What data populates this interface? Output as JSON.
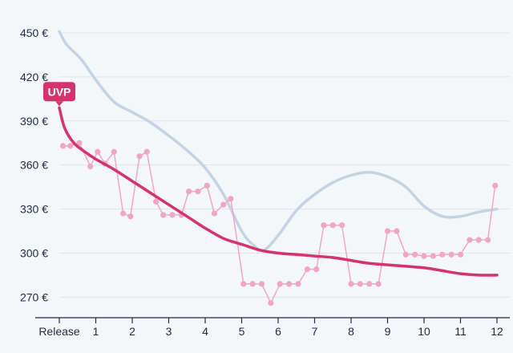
{
  "chart_data": {
    "type": "line",
    "x_tick_labels": [
      "Release",
      "1",
      "2",
      "3",
      "4",
      "5",
      "6",
      "7",
      "8",
      "9",
      "10",
      "11",
      "12"
    ],
    "y_tick_labels": [
      "270 €",
      "300 €",
      "330 €",
      "360 €",
      "390 €",
      "420 €",
      "450 €"
    ],
    "y_ticks": [
      270,
      300,
      330,
      360,
      390,
      420,
      450
    ],
    "xlim": [
      0,
      12
    ],
    "ylim": [
      256,
      456
    ],
    "grid": true,
    "annotation": {
      "text": "UVP",
      "x": 0,
      "y": 399
    },
    "colors": {
      "price": "#d6336c",
      "points": "#f0a5c5",
      "trend": "#c4d3e3"
    },
    "series": [
      {
        "role": "daily-prices",
        "x": [
          0.1,
          0.3,
          0.55,
          0.85,
          1.05,
          1.25,
          1.5,
          1.75,
          1.95,
          2.2,
          2.4,
          2.65,
          2.85,
          3.1,
          3.35,
          3.55,
          3.8,
          4.05,
          4.25,
          4.5,
          4.7,
          5.05,
          5.3,
          5.55,
          5.8,
          6.05,
          6.3,
          6.55,
          6.8,
          7.05,
          7.25,
          7.5,
          7.75,
          8.0,
          8.25,
          8.5,
          8.75,
          9.0,
          9.25,
          9.5,
          9.75,
          10.0,
          10.25,
          10.5,
          10.75,
          11.0,
          11.25,
          11.5,
          11.75,
          11.95
        ],
        "y": [
          373,
          373,
          375,
          359,
          369,
          361,
          369,
          327,
          325,
          366,
          369,
          335,
          326,
          326,
          326,
          342,
          342,
          346,
          327,
          333,
          337,
          279,
          279,
          279,
          266,
          279,
          279,
          279,
          289,
          289,
          319,
          319,
          319,
          279,
          279,
          279,
          279,
          315,
          315,
          299,
          299,
          298,
          298,
          299,
          299,
          299,
          309,
          309,
          309,
          346
        ]
      },
      {
        "role": "average-price",
        "x": [
          0,
          0.15,
          0.4,
          0.7,
          1.0,
          1.5,
          2.0,
          2.5,
          3.0,
          3.5,
          4.0,
          4.5,
          5.0,
          5.5,
          6.0,
          6.5,
          7.0,
          7.5,
          8.0,
          8.5,
          9.0,
          9.5,
          10.0,
          10.5,
          11.0,
          11.5,
          12.0
        ],
        "y": [
          399,
          385,
          375,
          369,
          364,
          357,
          349,
          341,
          333,
          325,
          317,
          310,
          306,
          302,
          300,
          299,
          298,
          297,
          295,
          293,
          292,
          291,
          290,
          288,
          286,
          285,
          285
        ]
      },
      {
        "role": "trend",
        "x": [
          0,
          0.2,
          0.6,
          1.0,
          1.5,
          2.0,
          2.5,
          3.0,
          3.5,
          4.0,
          4.5,
          5.0,
          5.3,
          5.6,
          6.0,
          6.5,
          7.0,
          7.5,
          8.0,
          8.5,
          9.0,
          9.5,
          10.0,
          10.5,
          11.0,
          11.5,
          12.0
        ],
        "y": [
          451,
          442,
          432,
          418,
          403,
          396,
          389,
          380,
          370,
          358,
          340,
          315,
          306,
          302,
          312,
          329,
          340,
          348,
          353,
          355,
          352,
          345,
          332,
          325,
          325,
          328,
          330
        ]
      }
    ]
  }
}
